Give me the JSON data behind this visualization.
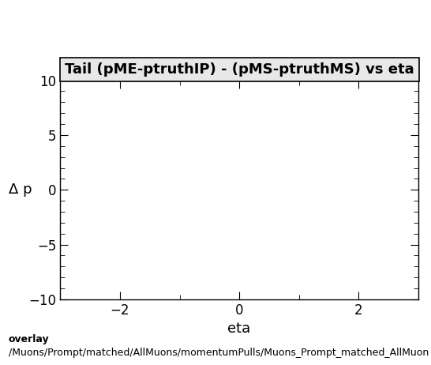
{
  "title": "Tail (pME-ptruthIP) - (pMS-ptruthMS) vs eta",
  "xlabel": "eta",
  "ylabel": "Δ p",
  "xlim": [
    -3.0,
    3.0
  ],
  "ylim": [
    -10,
    10
  ],
  "xticks": [
    -2,
    0,
    2
  ],
  "yticks": [
    -10,
    -5,
    0,
    5,
    10
  ],
  "x_minor_ticks": 1.0,
  "y_minor_ticks": 1.0,
  "footer_line1": "overlay",
  "footer_line2": "/Muons/Prompt/matched/AllMuons/momentumPulls/Muons_Prompt_matched_AllMuon",
  "background_color": "#ffffff",
  "title_fontsize": 13,
  "axis_label_fontsize": 13,
  "tick_fontsize": 12,
  "footer_fontsize": 9
}
